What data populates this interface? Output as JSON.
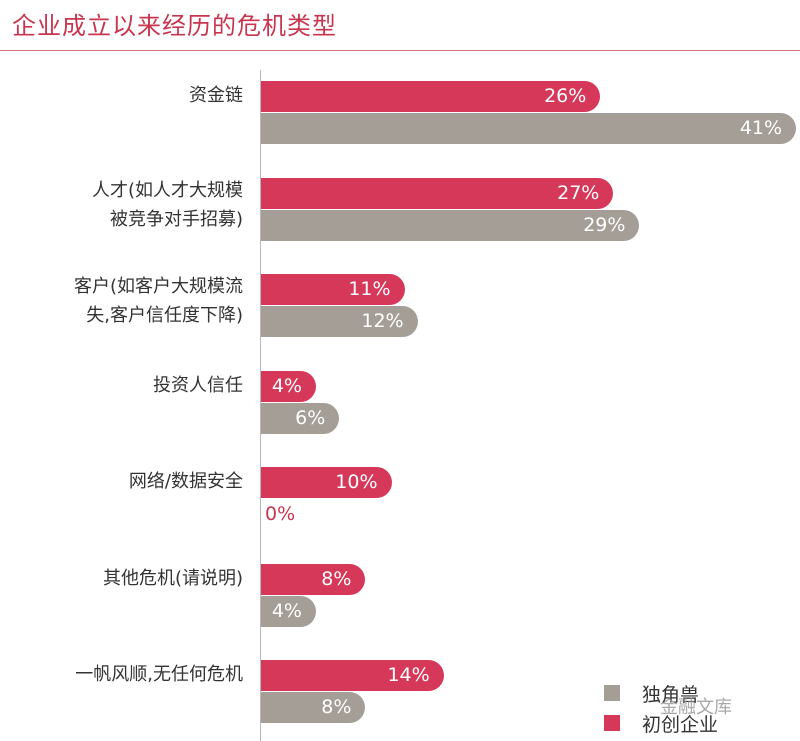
{
  "chart_data": {
    "type": "bar",
    "orientation": "horizontal",
    "title": "企业成立以来经历的危机类型",
    "categories": [
      "资金链",
      "人才(如人才大规模\n被竞争对手招募)",
      "客户(如客户大规模流\n失,客户信任度下降)",
      "投资人信任",
      "网络/数据安全",
      "其他危机(请说明)",
      "一帆风顺,无任何危机"
    ],
    "series": [
      {
        "name": "初创企业",
        "color": "#d6385a",
        "values": [
          26,
          27,
          11,
          4,
          10,
          8,
          14
        ],
        "labels": [
          "26%",
          "27%",
          "11%",
          "4%",
          "10%",
          "8%",
          "14%"
        ]
      },
      {
        "name": "独角兽",
        "color": "#a49e97",
        "values": [
          41,
          29,
          12,
          6,
          0,
          4,
          8
        ],
        "labels": [
          "41%",
          "29%",
          "12%",
          "6%",
          "0%",
          "4%",
          "8%"
        ]
      }
    ],
    "xlim": [
      0,
      41
    ],
    "legend_position": "bottom-right",
    "grid": false
  },
  "watermark": "金融文库"
}
